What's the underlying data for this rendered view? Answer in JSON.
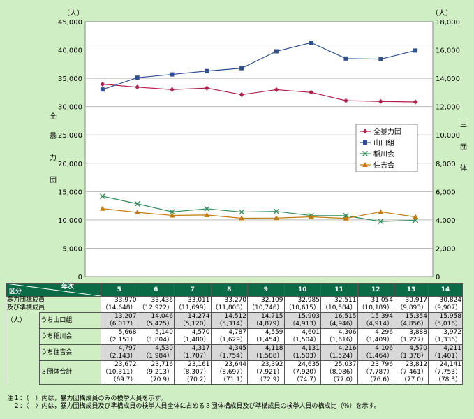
{
  "chart_data": {
    "type": "line",
    "x_categories": [
      "5",
      "6",
      "7",
      "8",
      "9",
      "10",
      "11",
      "12",
      "13",
      "14"
    ],
    "left_axis": {
      "unit_label": "（人）",
      "label": [
        "全",
        "暴",
        "力",
        "団"
      ],
      "ticks": [
        "0",
        "5,000",
        "10,000",
        "15,000",
        "20,000",
        "25,000",
        "30,000",
        "35,000",
        "40,000",
        "45,000"
      ],
      "ylim": [
        0,
        45000
      ]
    },
    "right_axis": {
      "unit_label": "（人）",
      "label": [
        "三",
        "団",
        "体"
      ],
      "ticks": [
        "0",
        "2,000",
        "4,000",
        "6,000",
        "8,000",
        "10,000",
        "12,000",
        "14,000",
        "16,000",
        "18,000"
      ],
      "ylim": [
        0,
        18000
      ]
    },
    "series": [
      {
        "name": "全暴力団",
        "axis": "left",
        "color": "#b0204a",
        "marker": "diamond",
        "values": [
          33970,
          33436,
          33011,
          33270,
          32109,
          32985,
          32511,
          31054,
          30917,
          30824
        ]
      },
      {
        "name": "山口組",
        "axis": "right",
        "color": "#2f4f8f",
        "marker": "square",
        "values": [
          13207,
          14046,
          14274,
          14512,
          14715,
          15903,
          16515,
          15394,
          15354,
          15958
        ]
      },
      {
        "name": "稲川会",
        "axis": "right",
        "color": "#2e8b57",
        "marker": "x",
        "values": [
          5668,
          5140,
          4570,
          4787,
          4559,
          4601,
          4306,
          4296,
          3888,
          3972
        ]
      },
      {
        "name": "住吉会",
        "axis": "right",
        "color": "#c07a10",
        "marker": "triangle",
        "values": [
          4797,
          4530,
          4317,
          4345,
          4118,
          4131,
          4216,
          4106,
          4570,
          4211
        ]
      }
    ]
  },
  "table": {
    "corner_top": "年次",
    "corner_bottom": "区分",
    "years": [
      "5",
      "6",
      "7",
      "8",
      "9",
      "10",
      "11",
      "12",
      "13",
      "14"
    ],
    "main_label": [
      "暴力団構成員",
      "及び準構成員",
      "（人）"
    ],
    "rows": [
      {
        "label": "",
        "shade": false,
        "values": [
          "33,970",
          "33,436",
          "33,011",
          "33,270",
          "32,109",
          "32,985",
          "32,511",
          "31,054",
          "30,917",
          "30,824"
        ],
        "paren": [
          "（14,648）",
          "（12,922）",
          "（11,699）",
          "（11,808）",
          "（10,746）",
          "（10,615）",
          "（10,584）",
          "（10,189）",
          "（9,893）",
          "（9,907）"
        ]
      },
      {
        "label": "うち山口組",
        "shade": true,
        "values": [
          "13,207",
          "14,046",
          "14,274",
          "14,512",
          "14,715",
          "15,903",
          "16,515",
          "15,394",
          "15,354",
          "15,958"
        ],
        "paren": [
          "（6,017）",
          "（5,425）",
          "（5,120）",
          "（5,314）",
          "（4,879）",
          "（4,913）",
          "（4,946）",
          "（4,914）",
          "（4,856）",
          "（5,016）"
        ]
      },
      {
        "label": "うち稲川会",
        "shade": false,
        "values": [
          "5,668",
          "5,140",
          "4,570",
          "4,787",
          "4,559",
          "4,601",
          "4,306",
          "4,296",
          "3,888",
          "3,972"
        ],
        "paren": [
          "（2,151）",
          "（1,804）",
          "（1,480）",
          "（1,629）",
          "（1,454）",
          "（1,504）",
          "（1,616）",
          "（1,409）",
          "（1,227）",
          "（1,336）"
        ]
      },
      {
        "label": "うち住吉会",
        "shade": true,
        "values": [
          "4,797",
          "4,530",
          "4,317",
          "4,345",
          "4,118",
          "4,131",
          "4,216",
          "4,106",
          "4,570",
          "4,211"
        ],
        "paren": [
          "（2,143）",
          "（1,984）",
          "（1,707）",
          "（1,754）",
          "（1,588）",
          "（1,503）",
          "（1,524）",
          "（1,464）",
          "（1,378）",
          "（1,401）"
        ]
      },
      {
        "label": "３団体合計",
        "shade": false,
        "values": [
          "23,672",
          "23,716",
          "23,161",
          "23,644",
          "23,392",
          "24,635",
          "25,037",
          "23,796",
          "23,812",
          "24,141"
        ],
        "paren": [
          "（10,311）",
          "（9,213）",
          "（8,307）",
          "（8,697）",
          "（7,921）",
          "（7,920）",
          "（8,086）",
          "（7,787）",
          "（7,461）",
          "（7,753）"
        ],
        "ratio": [
          "（69.7）",
          "（70.9）",
          "（70.2）",
          "（71.1）",
          "（72.9）",
          "（74.7）",
          "（77.0）",
          "（76.6）",
          "（77.0）",
          "（78.3）"
        ]
      }
    ]
  },
  "notes": [
    "注１：（　）内は，暴力団構成員のみの検挙人員を示す。",
    "　２：〈　〉内は，暴力団構成員及び準構成員の検挙人員全体に占める３団体構成員及び準構成員の検挙人員の構成比（％）を示す。"
  ]
}
